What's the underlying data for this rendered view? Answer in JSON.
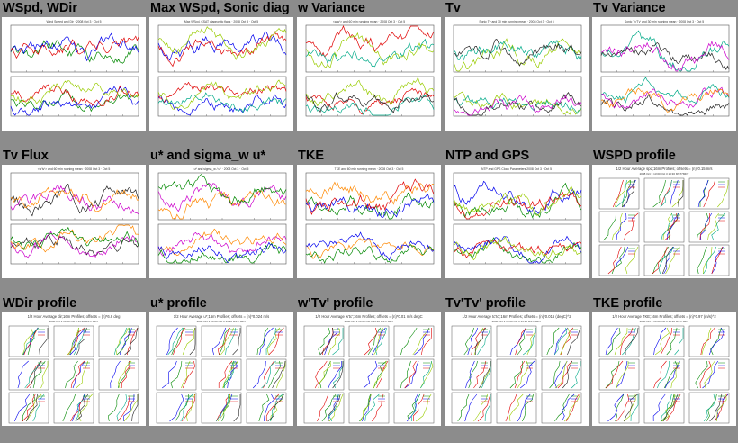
{
  "page": {
    "background": "#8c8c8c"
  },
  "cells": [
    {
      "title": "WSpd, WDir",
      "kind": "ts",
      "subtitle": "Wind Speed and Dir · 2008 Oct 3 · Oct 5"
    },
    {
      "title": "Max WSpd, Sonic diag",
      "kind": "ts",
      "subtitle": "Max WSpd, CSAT diagnostic flags · 2008 Oct 3 · Oct 5"
    },
    {
      "title": "w Variance",
      "kind": "ts",
      "subtitle": "<w'w'> and 60 min running mean · 2008 Oct 3 · Oct 5"
    },
    {
      "title": "Tv",
      "kind": "ts",
      "subtitle": "Sonic Tv and 30 min running mean · 2008 Oct 3 · Oct 5"
    },
    {
      "title": "Tv Variance",
      "kind": "ts",
      "subtitle": "Sonic Tv'Tv' and 30 min running mean · 2008 Oct 3 · Oct 5"
    },
    {
      "title": "Tv Flux",
      "kind": "ts",
      "subtitle": "<w'tv'> and 60 min running mean · 2008 Oct 3 · Oct 5"
    },
    {
      "title": "u* and sigma_w u*",
      "kind": "ts",
      "subtitle": "u* and sigma_w / u* · 2008 Oct 3 · Oct 5"
    },
    {
      "title": "TKE",
      "kind": "ts",
      "subtitle": "TKE and 60 min running mean · 2008 Oct 3 · Oct 5"
    },
    {
      "title": "NTP and GPS",
      "kind": "ts",
      "subtitle": "NTP and GPS Clock Parameters 2008 Oct 3 · Oct 5"
    },
    {
      "title": "WSPD profile",
      "kind": "profile",
      "subtitle": "1/2 Hour Average spd;16m Profiles; offsets = (n)*0.15 m/s",
      "subtitle2": "2008 Oct 3 13:00 Oct 3 13:30 MST7MDT"
    },
    {
      "title": "WDir profile",
      "kind": "profile",
      "subtitle": "1/2 Hour Average dir;16m Profiles; offsets = (n)*6.8 deg",
      "subtitle2": "2008 Oct 3 13:00 Oct 3 13:30 MST7MDT"
    },
    {
      "title": "u* profile",
      "kind": "profile",
      "subtitle": "1/2 Hour Average u*;16m Profiles; offsets = (n)*0.024 m/s",
      "subtitle2": "2008 Oct 3 13:00 Oct 3 13:30 MST7MDT"
    },
    {
      "title": "w'Tv' profile",
      "kind": "profile",
      "subtitle": "1/2 Hour Average w'tc';16m Profiles; offsets = (n)*0.01 m/s degC",
      "subtitle2": "2008 Oct 3 13:00 Oct 3 13:30 MST7MDT"
    },
    {
      "title": "Tv'Tv' profile",
      "kind": "profile",
      "subtitle": "1/2 Hour Average tc'tc';16m Profiles; offsets = (n)*0.016 (degC)^2",
      "subtitle2": "2008 Oct 3 13:00 Oct 3 13:30 MST7MDT"
    },
    {
      "title": "TKE profile",
      "kind": "profile",
      "subtitle": "1/2 Hour Average TKE;16m Profiles; offsets = (n)*0.97 (m/s)^2",
      "subtitle2": "2008 Oct 3 13:00 Oct 3 13:30 MST7MDT"
    }
  ],
  "colors": {
    "series": [
      "#008800",
      "#0000ee",
      "#e00000",
      "#99cc00",
      "#00aa88",
      "#222222",
      "#cc00cc",
      "#ff8800"
    ],
    "axis": "#555555"
  }
}
